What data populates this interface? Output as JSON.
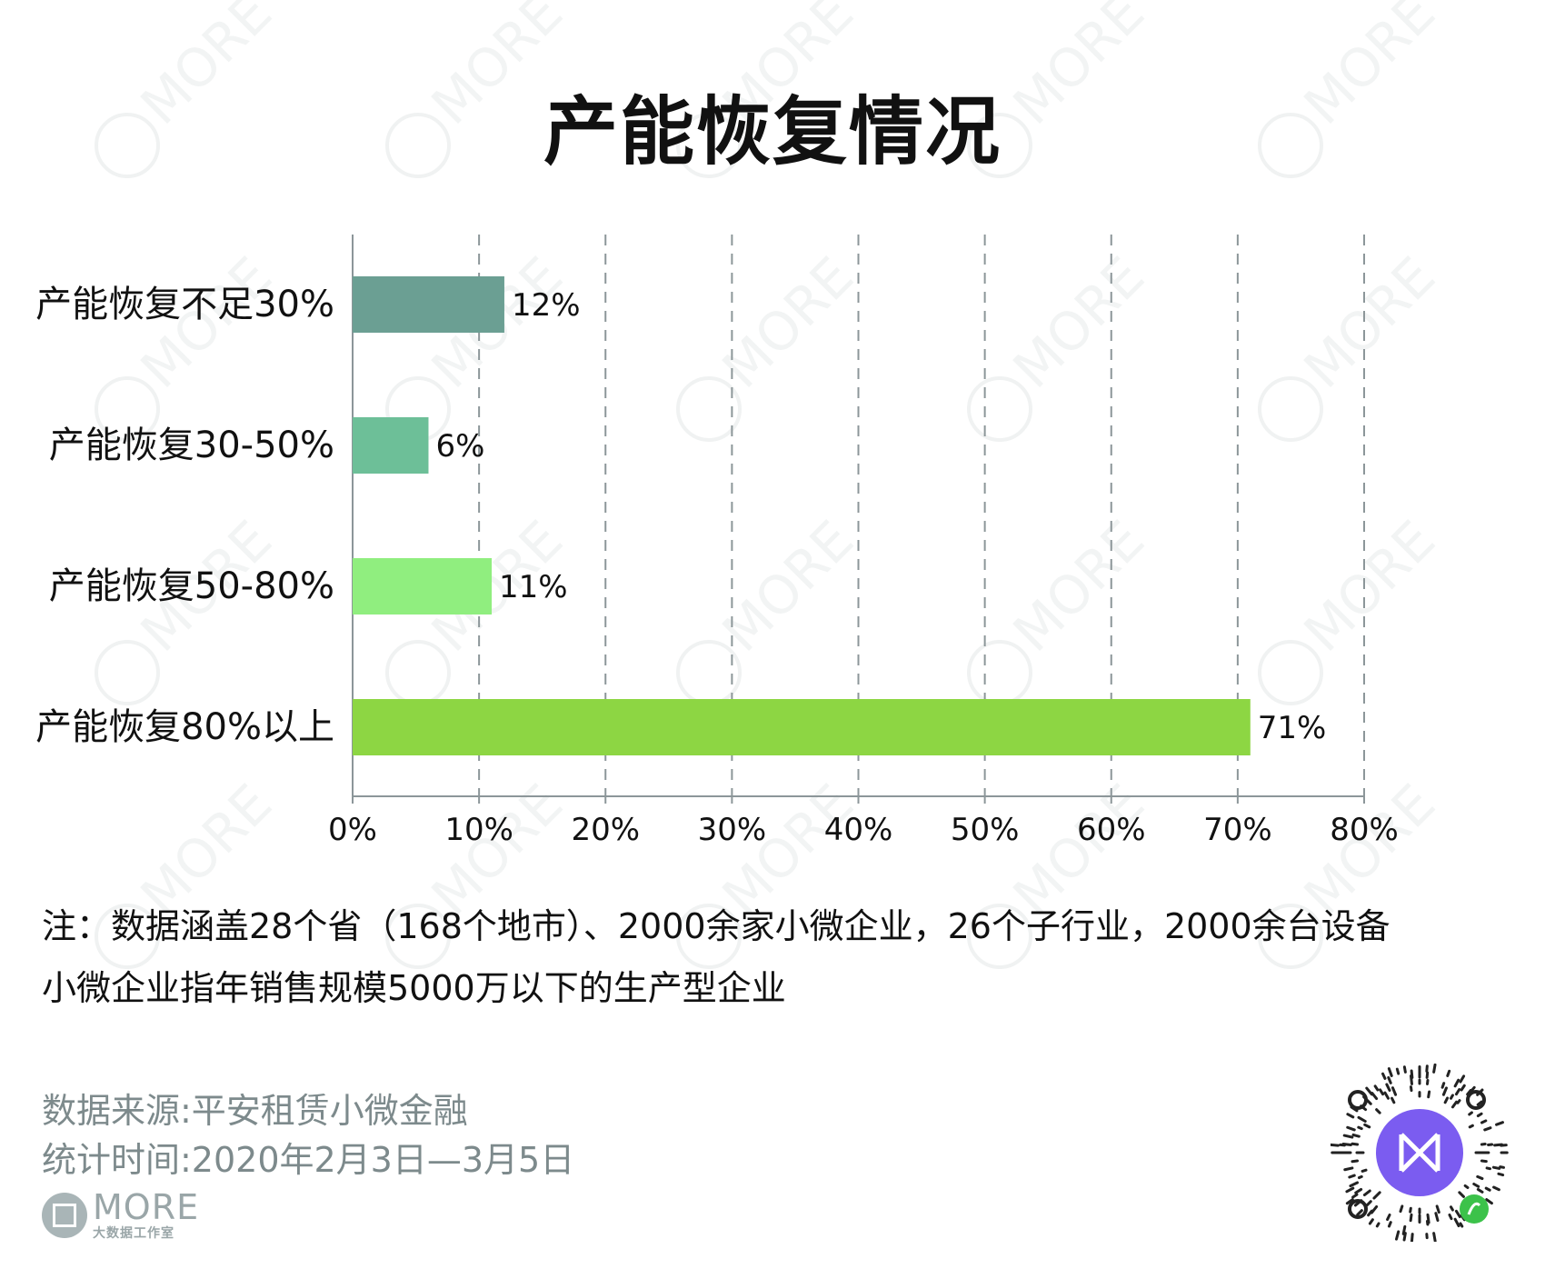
{
  "chart_data": {
    "type": "bar",
    "orientation": "horizontal",
    "title": "产能恢复情况",
    "categories": [
      "产能恢复不足30%",
      "产能恢复30-50%",
      "产能恢复50-80%",
      "产能恢复80%以上"
    ],
    "values": [
      12,
      6,
      11,
      71
    ],
    "value_labels": [
      "12%",
      "6%",
      "11%",
      "71%"
    ],
    "bar_colors": [
      "#6b9f93",
      "#6dbf98",
      "#90ee7f",
      "#8dd643"
    ],
    "xlim": [
      0,
      80
    ],
    "x_ticks": [
      0,
      10,
      20,
      30,
      40,
      50,
      60,
      70,
      80
    ],
    "x_tick_labels": [
      "0%",
      "10%",
      "20%",
      "30%",
      "40%",
      "50%",
      "60%",
      "70%",
      "80%"
    ],
    "grid": "vertical dashed",
    "xlabel": "",
    "ylabel": ""
  },
  "notes": [
    "注：数据涵盖28个省（168个地市）、2000余家小微企业，26个子行业，2000余台设备",
    "小微企业指年销售规模5000万以下的生产型企业"
  ],
  "source": {
    "data_source": "数据来源:平安租赁小微金融",
    "period": "统计时间:2020年2月3日—3月5日"
  },
  "logo": {
    "brand": "MORE",
    "sub": "大数据工作室"
  },
  "watermark_text": "MORE 大数据工作室",
  "qr_accent_color": "#7b5cf0",
  "qr_badge_color": "#3cc24a"
}
